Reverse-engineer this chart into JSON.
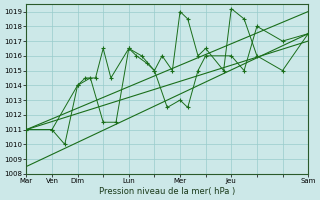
{
  "xlabel": "Pression niveau de la mer( hPa )",
  "ylim": [
    1008,
    1019.5
  ],
  "yticks": [
    1008,
    1009,
    1010,
    1011,
    1012,
    1013,
    1014,
    1015,
    1016,
    1017,
    1018,
    1019
  ],
  "xtick_labels": [
    "Mar",
    "Ven",
    "Dim",
    "",
    "Lun",
    "",
    "Mer",
    "",
    "Jeu",
    "",
    "",
    "Sam"
  ],
  "xtick_positions": [
    0,
    1,
    2,
    3,
    4,
    5,
    6,
    7,
    8,
    9,
    10,
    11
  ],
  "xlim": [
    0,
    11
  ],
  "background_color": "#cce8e8",
  "grid_color": "#99cccc",
  "line_color": "#1a6e1a",
  "series1_x": [
    0,
    1,
    1.5,
    2,
    2.3,
    2.7,
    3,
    3.3,
    4,
    4.3,
    4.7,
    5,
    5.3,
    5.7,
    6,
    6.3,
    6.7,
    7,
    7.7,
    8,
    8.5,
    9,
    10,
    11
  ],
  "series1_y": [
    1011,
    1011,
    1010,
    1014,
    1014.5,
    1014.5,
    1016.5,
    1014.5,
    1016.5,
    1016,
    1015.5,
    1015,
    1016,
    1015,
    1019,
    1018.5,
    1016,
    1016.5,
    1015,
    1019.2,
    1018.5,
    1016,
    1015,
    1017.5
  ],
  "series2_x": [
    0,
    1,
    2,
    2.5,
    3,
    3.5,
    4,
    4.5,
    5,
    5.5,
    6,
    6.3,
    6.7,
    7,
    8,
    8.5,
    9,
    10,
    11
  ],
  "series2_y": [
    1011,
    1011,
    1014,
    1014.5,
    1011.5,
    1011.5,
    1016.5,
    1016,
    1015,
    1012.5,
    1013,
    1012.5,
    1015,
    1016,
    1016,
    1015,
    1018,
    1017,
    1017.5
  ],
  "trend1_x": [
    0,
    11
  ],
  "trend1_y": [
    1011,
    1017
  ],
  "trend2_x": [
    0,
    11
  ],
  "trend2_y": [
    1008.5,
    1017.5
  ],
  "trend3_x": [
    0,
    11
  ],
  "trend3_y": [
    1011,
    1019
  ]
}
